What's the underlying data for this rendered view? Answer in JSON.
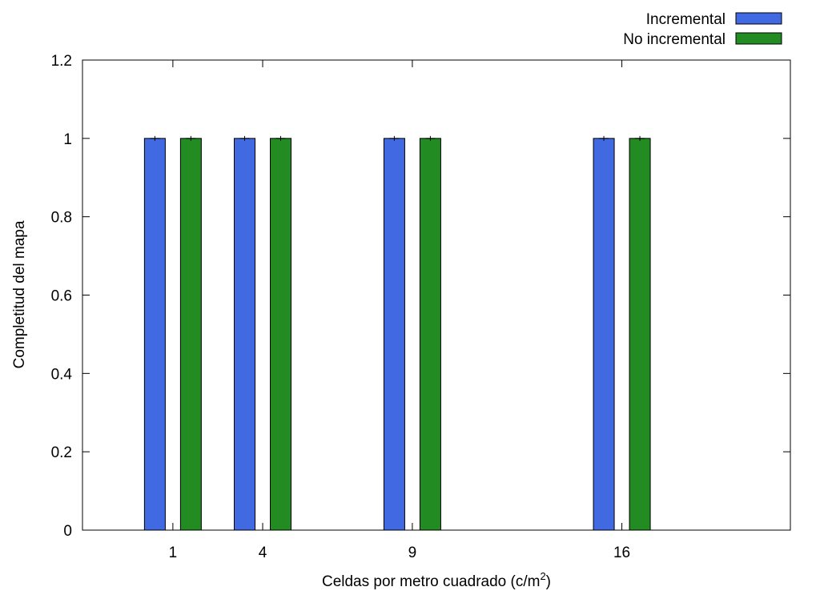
{
  "chart_data": {
    "type": "bar",
    "x": [
      1,
      4,
      9,
      16
    ],
    "x_tick_labels": [
      "1",
      "4",
      "9",
      "16"
    ],
    "series": [
      {
        "name": "Incremental",
        "color": "#4169e1",
        "values": [
          1,
          1,
          1,
          1
        ],
        "errors": [
          0,
          0,
          0,
          0
        ]
      },
      {
        "name": "No incremental",
        "color": "#228b22",
        "values": [
          1,
          1,
          1,
          1
        ],
        "errors": [
          0,
          0,
          0,
          0
        ]
      }
    ],
    "xlabel_main": "Celdas por metro cuadrado (c/m",
    "xlabel_sup": "2",
    "xlabel_end": ")",
    "ylabel": "Completitud del mapa",
    "ylim": [
      0,
      1.2
    ],
    "y_ticks": [
      0,
      0.2,
      0.4,
      0.6,
      0.8,
      1,
      1.2
    ],
    "y_tick_labels": [
      "0",
      "0.2",
      "0.4",
      "0.6",
      "0.8",
      "1",
      "1.2"
    ],
    "grid": false,
    "legend_position": "top-right, outside plot area"
  }
}
